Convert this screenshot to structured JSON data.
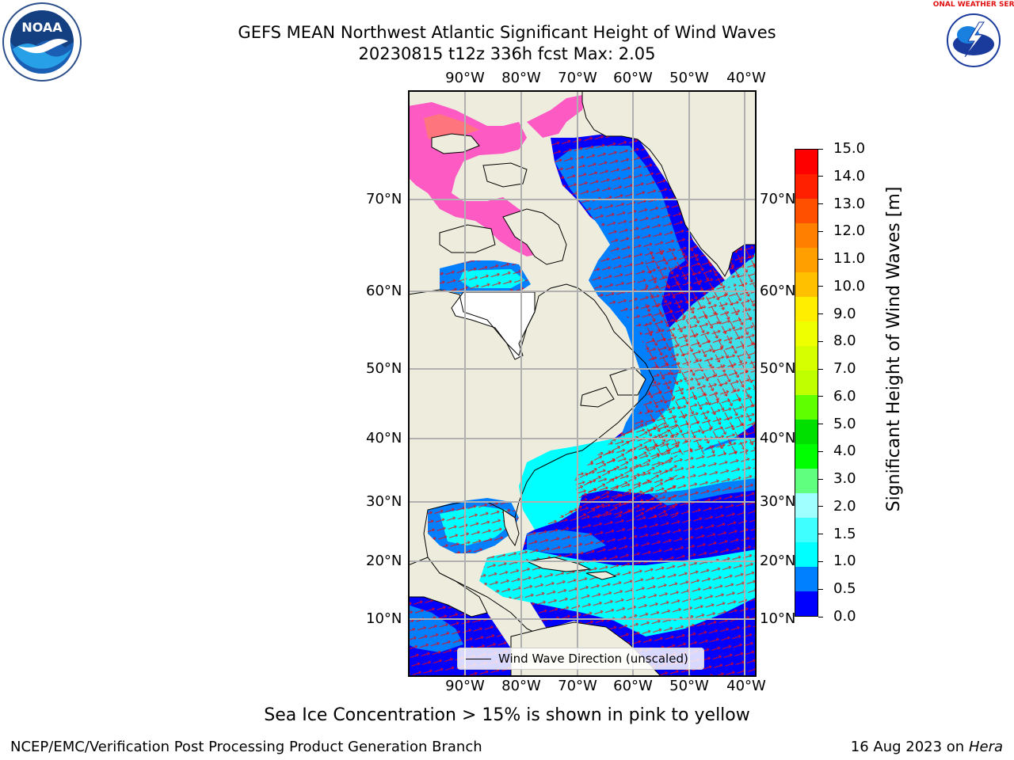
{
  "header": {
    "title_line1": "GEFS MEAN Northwest Atlantic Significant Height of Wind Waves",
    "title_line2": "20230815 t12z 336h fcst   Max: 2.05"
  },
  "map": {
    "lon_labels": [
      "90°W",
      "80°W",
      "70°W",
      "60°W",
      "50°W",
      "40°W"
    ],
    "lat_labels": [
      "70°N",
      "60°N",
      "50°N",
      "40°N",
      "30°N",
      "20°N",
      "10°N"
    ],
    "legend_label": "Wind Wave Direction (unscaled)",
    "colors": {
      "land": "#eeeddd",
      "deep_blue": "#0000ff",
      "mid_blue": "#0080ff",
      "cyan": "#00ffff",
      "light_cyan": "#40e0e8",
      "arrow": "#ff0000",
      "ice_pink": "#ff40c0",
      "grid": "#b0b0b0"
    }
  },
  "colorbar": {
    "label": "Significant Height of Wind Waves [m]",
    "ticks": [
      "15.0",
      "14.0",
      "13.0",
      "12.0",
      "11.0",
      "10.0",
      "9.0",
      "8.0",
      "7.0",
      "6.0",
      "5.0",
      "4.0",
      "3.0",
      "2.0",
      "1.5",
      "1.0",
      "0.5",
      "0.0"
    ],
    "colors": [
      "#ff0000",
      "#ff2000",
      "#ff5000",
      "#ff7f00",
      "#ffa000",
      "#ffc000",
      "#ffee00",
      "#f0ff00",
      "#d6ff00",
      "#c0ff00",
      "#60ff00",
      "#00e000",
      "#00ff00",
      "#60ff80",
      "#a0ffff",
      "#40ffff",
      "#00ffff",
      "#0080ff",
      "#0000ff"
    ]
  },
  "caption": "Sea Ice Concentration > 15% is shown in pink to yellow",
  "footer": {
    "left": "NCEP/EMC/Verification Post Processing Product Generation Branch",
    "right_date": "16 Aug 2023 on",
    "right_host": "Hera"
  },
  "logos": {
    "noaa": "NOAA",
    "nws": "NATIONAL WEATHER SERVICE"
  }
}
